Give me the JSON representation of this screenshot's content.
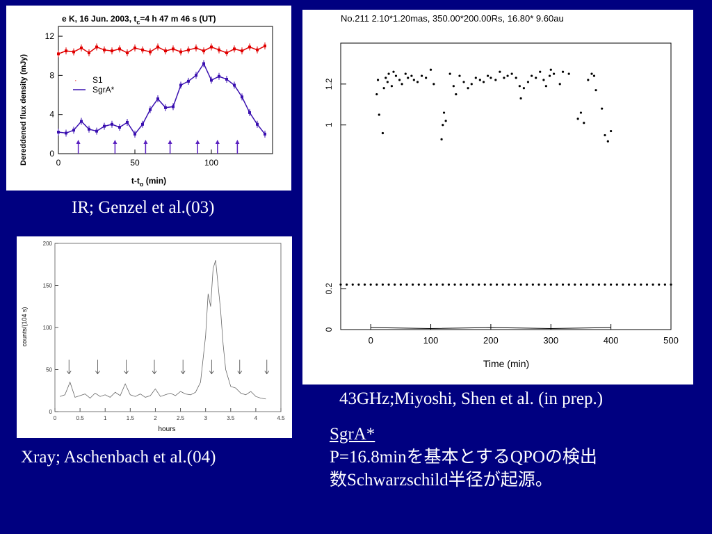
{
  "ir": {
    "caption": "IR; Genzel et al.(03)",
    "title_a": "e K, 16 Jun. 2003, t",
    "title_sub": "c",
    "title_b": "=4 h 47 m 46 s (UT)",
    "ylabel": "Dereddened flux density (mJy)",
    "xlabel_a": "t-t",
    "xlabel_sub": "o",
    "xlabel_b": " (min)",
    "legend": [
      "S1",
      "SgrA*"
    ],
    "colors": {
      "s1": "#e00000",
      "sgra": "#3a10b0",
      "arrows": "#5a20c0"
    }
  },
  "xray": {
    "caption": "Xray; Aschenbach et al.(04)",
    "ylabel": "counts/(104 s)",
    "xlabel": "hours"
  },
  "radio": {
    "caption": "43GHz;Miyoshi, Shen et al. (in prep.)",
    "header": "No.211  2.10*1.20mas,  350.00*200.00Rs,  16.80*  9.60au",
    "xlabel": "Time (min)"
  },
  "note": {
    "line1": "SgrA*",
    "line2": "P=16.8minを基本とするQPOの検出",
    "line3": "数Schwarzschild半径が起源。"
  },
  "chart_data": [
    {
      "type": "scatter",
      "panel": "ir",
      "xlim": [
        0,
        140
      ],
      "ylim": [
        0,
        13
      ],
      "xticks": [
        0,
        50,
        100
      ],
      "yticks": [
        0,
        4,
        8,
        12
      ],
      "series": [
        {
          "name": "S1",
          "x": [
            0,
            5,
            10,
            15,
            20,
            25,
            30,
            35,
            40,
            45,
            50,
            55,
            60,
            65,
            70,
            75,
            80,
            85,
            90,
            95,
            100,
            105,
            110,
            115,
            120,
            125,
            130,
            135
          ],
          "y": [
            10.2,
            10.5,
            10.4,
            10.8,
            10.3,
            10.9,
            10.6,
            10.5,
            10.7,
            10.3,
            10.8,
            10.6,
            10.4,
            10.9,
            10.5,
            10.7,
            10.4,
            10.6,
            10.8,
            10.5,
            10.9,
            10.6,
            10.3,
            10.7,
            10.5,
            10.9,
            10.6,
            11.0
          ]
        },
        {
          "name": "SgrA*",
          "x": [
            0,
            5,
            10,
            15,
            20,
            25,
            30,
            35,
            40,
            45,
            50,
            55,
            60,
            65,
            70,
            75,
            80,
            85,
            90,
            95,
            100,
            105,
            110,
            115,
            120,
            125,
            130,
            135
          ],
          "y": [
            2.2,
            2.1,
            2.4,
            3.3,
            2.5,
            2.3,
            2.8,
            3.0,
            2.7,
            3.2,
            2.0,
            3.0,
            4.5,
            5.6,
            4.7,
            4.8,
            7.0,
            7.4,
            8.0,
            9.2,
            7.5,
            7.9,
            7.6,
            7.0,
            5.8,
            4.2,
            3.0,
            2.0
          ]
        }
      ],
      "markers_x": [
        13,
        37,
        57,
        73,
        91,
        104,
        117
      ]
    },
    {
      "type": "line",
      "panel": "xray",
      "xlim": [
        0,
        4.5
      ],
      "ylim": [
        0,
        200
      ],
      "xticks": [
        0,
        0.5,
        1,
        1.5,
        2,
        2.5,
        3,
        3.5,
        4,
        4.5
      ],
      "yticks": [
        0,
        50,
        100,
        150,
        200
      ],
      "x": [
        0.1,
        0.2,
        0.3,
        0.4,
        0.5,
        0.6,
        0.7,
        0.8,
        0.9,
        1.0,
        1.1,
        1.2,
        1.3,
        1.4,
        1.5,
        1.6,
        1.7,
        1.8,
        1.9,
        2.0,
        2.1,
        2.2,
        2.3,
        2.4,
        2.5,
        2.6,
        2.7,
        2.8,
        2.9,
        3.0,
        3.05,
        3.1,
        3.15,
        3.2,
        3.25,
        3.3,
        3.35,
        3.4,
        3.5,
        3.6,
        3.7,
        3.8,
        3.9,
        4.0,
        4.1,
        4.2
      ],
      "y": [
        18,
        20,
        35,
        17,
        19,
        21,
        16,
        22,
        18,
        20,
        17,
        23,
        19,
        33,
        20,
        18,
        21,
        17,
        19,
        27,
        18,
        20,
        22,
        19,
        24,
        21,
        20,
        23,
        35,
        90,
        140,
        125,
        170,
        180,
        150,
        120,
        80,
        50,
        30,
        28,
        22,
        20,
        24,
        18,
        16,
        15
      ],
      "markers_x": [
        0.28,
        0.85,
        1.42,
        1.98,
        2.55,
        3.12,
        3.68,
        4.22
      ]
    },
    {
      "type": "scatter",
      "panel": "radio",
      "xlim": [
        -50,
        500
      ],
      "ylim": [
        0,
        1.4
      ],
      "xticks": [
        0,
        100,
        200,
        300,
        400,
        500
      ],
      "yticks": [
        0,
        0.2,
        1,
        1.2
      ],
      "series": [
        {
          "x": [
            10,
            12,
            14,
            20,
            22,
            25,
            28,
            30,
            35,
            38,
            42,
            48,
            52,
            58,
            62,
            68,
            72,
            78,
            85,
            92,
            100,
            105,
            118,
            120,
            122,
            125,
            132,
            138,
            142,
            148,
            155,
            162,
            168,
            175,
            182,
            188,
            195,
            200,
            208,
            215,
            222,
            228,
            235,
            242,
            248,
            250,
            255,
            262,
            268,
            275,
            282,
            288,
            292,
            298,
            300,
            305,
            315,
            320,
            330,
            345,
            350,
            355,
            362,
            368,
            372,
            375,
            385,
            390,
            395,
            400
          ],
          "y": [
            1.15,
            1.22,
            1.05,
            0.96,
            1.18,
            1.23,
            1.21,
            1.25,
            1.19,
            1.26,
            1.24,
            1.22,
            1.2,
            1.25,
            1.23,
            1.24,
            1.22,
            1.21,
            1.24,
            1.23,
            1.27,
            1.2,
            0.93,
            1.0,
            1.06,
            1.02,
            1.25,
            1.19,
            1.15,
            1.24,
            1.21,
            1.18,
            1.2,
            1.23,
            1.22,
            1.21,
            1.24,
            1.23,
            1.22,
            1.26,
            1.23,
            1.24,
            1.25,
            1.23,
            1.19,
            1.13,
            1.18,
            1.21,
            1.24,
            1.23,
            1.26,
            1.22,
            1.19,
            1.24,
            1.27,
            1.25,
            1.2,
            1.26,
            1.25,
            1.03,
            1.06,
            1.01,
            1.22,
            1.25,
            1.24,
            1.17,
            1.08,
            0.95,
            0.92,
            0.97
          ]
        },
        {
          "x": [
            -50,
            -40,
            -30,
            -20,
            -10,
            0,
            10,
            20,
            30,
            40,
            50,
            60,
            70,
            80,
            90,
            100,
            110,
            120,
            130,
            140,
            150,
            160,
            170,
            180,
            190,
            200,
            210,
            220,
            230,
            240,
            250,
            260,
            270,
            280,
            290,
            300,
            310,
            320,
            330,
            340,
            350,
            360,
            370,
            380,
            390,
            400,
            410,
            420,
            430,
            440,
            450,
            460,
            470,
            480,
            490,
            500
          ],
          "y": [
            0.22,
            0.22,
            0.22,
            0.22,
            0.22,
            0.22,
            0.22,
            0.22,
            0.22,
            0.22,
            0.22,
            0.22,
            0.22,
            0.22,
            0.22,
            0.22,
            0.22,
            0.22,
            0.22,
            0.22,
            0.22,
            0.22,
            0.22,
            0.22,
            0.22,
            0.22,
            0.22,
            0.22,
            0.22,
            0.22,
            0.22,
            0.22,
            0.22,
            0.22,
            0.22,
            0.22,
            0.22,
            0.22,
            0.22,
            0.22,
            0.22,
            0.22,
            0.22,
            0.22,
            0.22,
            0.22,
            0.22,
            0.22,
            0.22,
            0.22,
            0.22,
            0.22,
            0.22,
            0.22,
            0.22,
            0.22
          ]
        }
      ],
      "baseline": {
        "x": [
          0,
          100,
          200,
          300,
          400
        ],
        "y": [
          0.01,
          0.005,
          0.01,
          0.005,
          0.01
        ]
      }
    }
  ]
}
